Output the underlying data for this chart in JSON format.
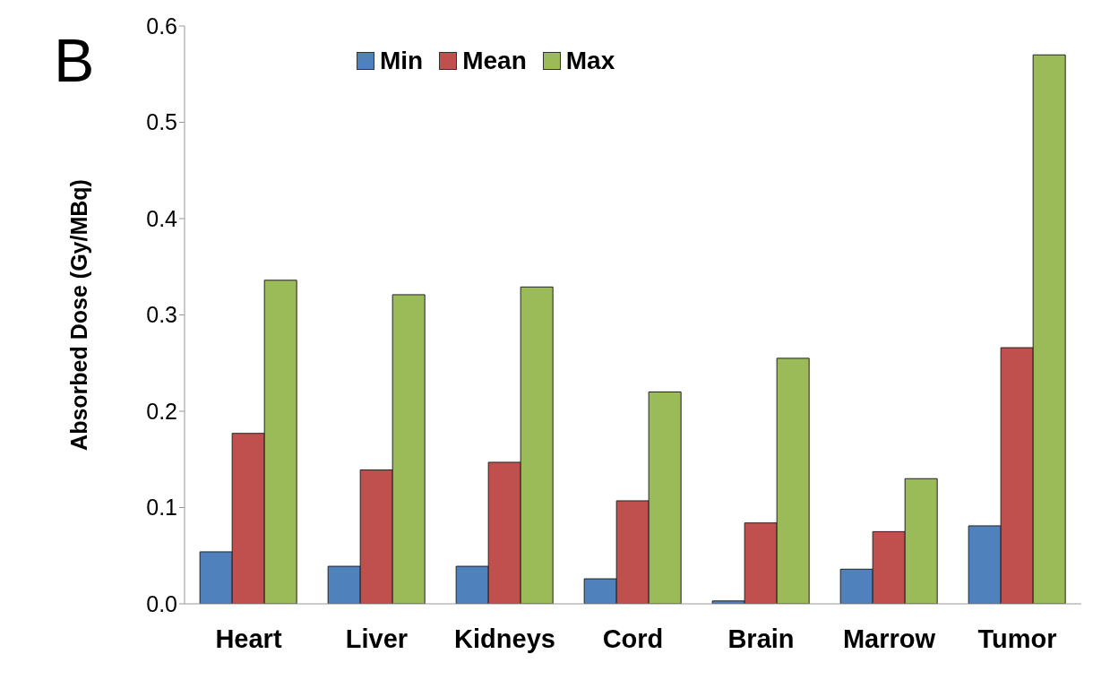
{
  "chart_data": {
    "type": "bar",
    "ylabel": "Absorbed Dose (Gy/MBq)",
    "annotations": [
      "B"
    ],
    "categories": [
      "Heart",
      "Liver",
      "Kidneys",
      "Cord",
      "Brain",
      "Marrow",
      "Tumor"
    ],
    "series": [
      {
        "name": "Min",
        "color": "#4f81bd",
        "values": [
          0.054,
          0.039,
          0.039,
          0.026,
          0.003,
          0.036,
          0.081
        ]
      },
      {
        "name": "Mean",
        "color": "#c0504d",
        "values": [
          0.177,
          0.139,
          0.147,
          0.107,
          0.084,
          0.075,
          0.266
        ]
      },
      {
        "name": "Max",
        "color": "#9bbb59",
        "values": [
          0.336,
          0.321,
          0.329,
          0.22,
          0.255,
          0.13,
          0.57
        ]
      }
    ],
    "ylim": [
      0,
      0.6
    ],
    "yticks": [
      {
        "value": 0,
        "label": "0.0"
      },
      0.1,
      0.2,
      0.3,
      0.4,
      0.5,
      0.6
    ],
    "grid": false,
    "legend": "top"
  }
}
